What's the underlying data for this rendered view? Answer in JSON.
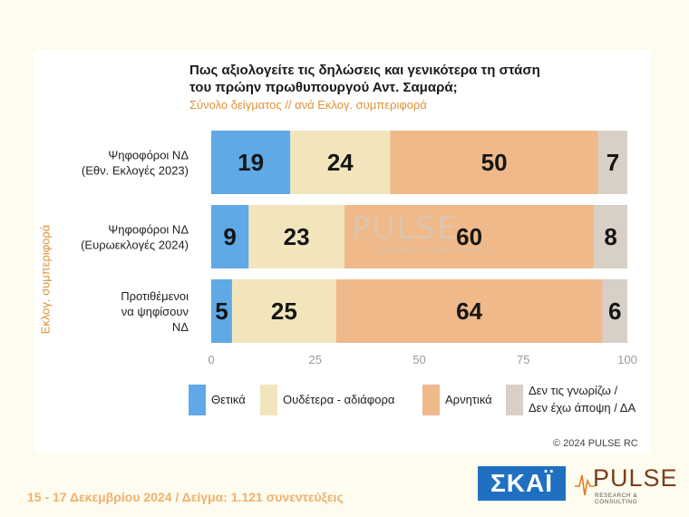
{
  "title": "Πως αξιολογείτε τις δηλώσεις και γενικότερα τη στάση του πρώην πρωθυπουργού Αντ. Σαμαρά;",
  "subtitle": "Σύνολο δείγματος // ανά Εκλογ. συμπεριφορά",
  "side_label": "Εκλογ. συμπεριφορά",
  "watermark": {
    "main": "PULSE",
    "sub": "RESEARCH & CONSULTING"
  },
  "copyright": "© 2024 PULSE RC",
  "footer": "15 - 17 Δεκεμβρίου 2024  /  Δείγμα:  1.121 συνεντεύξεις",
  "logos": {
    "skai": "ΣΚΑΪ",
    "pulse": "PULSE",
    "pulse_sub": "RESEARCH & CONSULTING"
  },
  "colors": {
    "positive": "#5fa9e6",
    "neutral": "#f2e5bc",
    "negative": "#efb989",
    "dont_know": "#d8cfc6"
  },
  "chart_data": {
    "type": "bar",
    "orientation": "horizontal",
    "stacked": true,
    "categories": [
      [
        "Ψηφοφόροι ΝΔ",
        "(Εθν. Εκλογές 2023)"
      ],
      [
        "Ψηφοφόροι ΝΔ",
        "(Ευρωεκλογές 2024)"
      ],
      [
        "Προτιθέμενοι",
        "να ψηφίσουν",
        "ΝΔ"
      ]
    ],
    "series": [
      {
        "name": "Θετικά",
        "values": [
          19,
          9,
          5
        ]
      },
      {
        "name": "Ουδέτερα - αδιάφορα",
        "values": [
          24,
          23,
          25
        ]
      },
      {
        "name": "Αρνητικά",
        "values": [
          50,
          60,
          64
        ]
      },
      {
        "name": "Δεν τις γνωρίζω / Δεν έχω άποψη / ΔΑ",
        "legend_lines": [
          "Δεν τις γνωρίζω /",
          "Δεν έχω άποψη / ΔΑ"
        ],
        "values": [
          7,
          8,
          6
        ]
      }
    ],
    "xlim": [
      0,
      100
    ],
    "xticks": [
      0,
      25,
      50,
      75,
      100
    ],
    "grid": false,
    "legend_position": "bottom"
  }
}
